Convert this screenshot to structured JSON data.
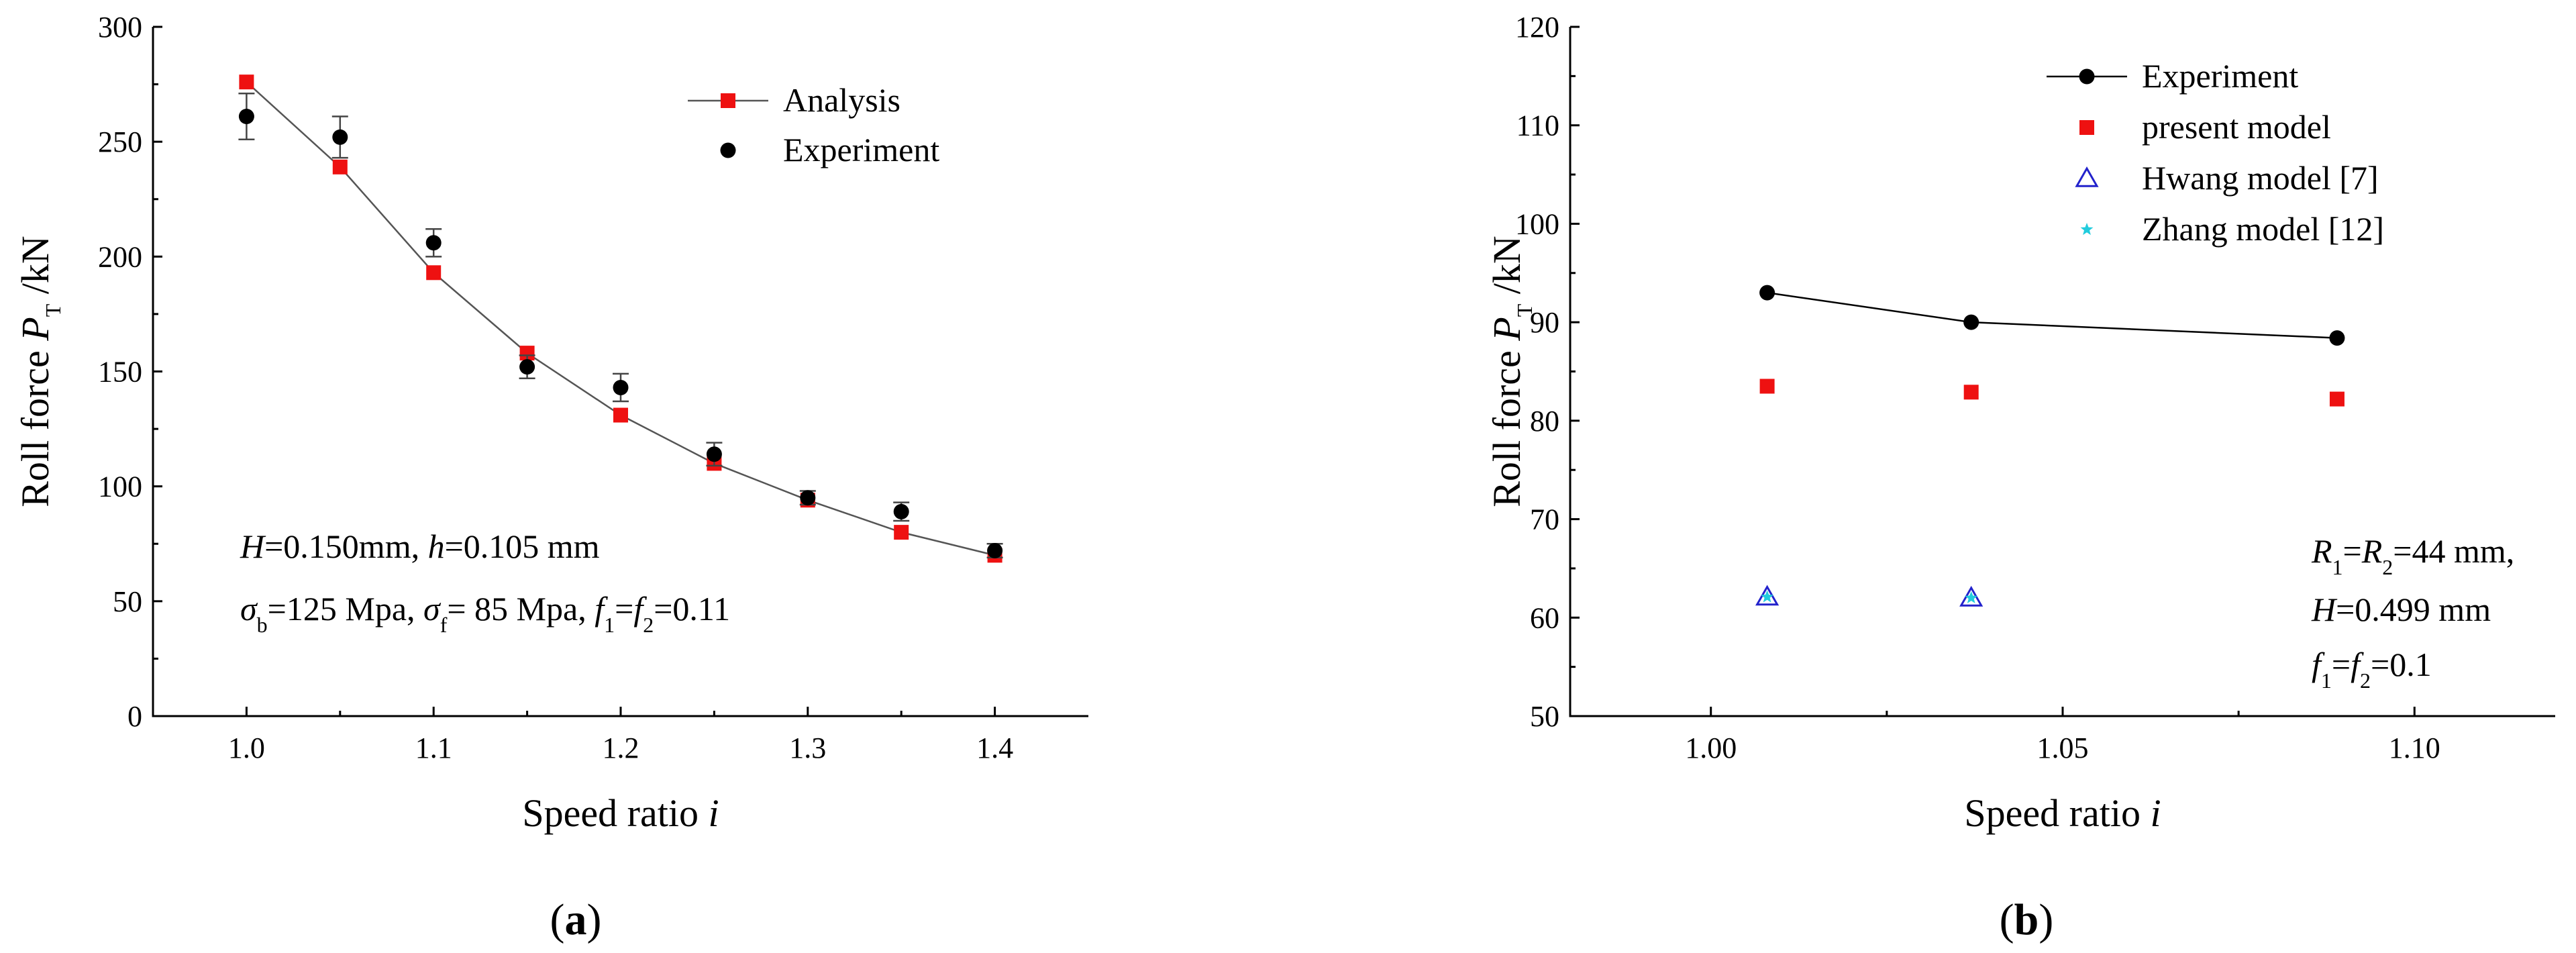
{
  "chart_data": [
    {
      "type": "line",
      "panel_label": "a",
      "xlabel": "Speed ratio ",
      "xlabel_var": "i",
      "ylabel_prefix": "Roll force ",
      "ylabel_var": "P",
      "ylabel_sub": "T",
      "ylabel_suffix": " /kN",
      "xlim": [
        0.95,
        1.45
      ],
      "ylim": [
        0,
        300
      ],
      "xticks": [
        1.0,
        1.1,
        1.2,
        1.3,
        1.4
      ],
      "xtick_labels": [
        "1.0",
        "1.1",
        "1.2",
        "1.3",
        "1.4"
      ],
      "yticks": [
        0,
        50,
        100,
        150,
        200,
        250,
        300
      ],
      "ytick_labels": [
        "0",
        "50",
        "100",
        "150",
        "200",
        "250",
        "300"
      ],
      "legend_position": "top-right",
      "series": [
        {
          "name": "Analysis",
          "marker": "square",
          "color": "#ee1111",
          "line_color": "#555555",
          "x": [
            1.0,
            1.05,
            1.1,
            1.15,
            1.2,
            1.25,
            1.3,
            1.35,
            1.4
          ],
          "y": [
            276,
            239,
            193,
            158,
            131,
            110,
            94,
            80,
            70
          ]
        },
        {
          "name": "Experiment",
          "marker": "circle",
          "color": "#000000",
          "x": [
            1.0,
            1.05,
            1.1,
            1.15,
            1.2,
            1.25,
            1.3,
            1.35,
            1.4
          ],
          "y": [
            261,
            252,
            206,
            152,
            143,
            114,
            95,
            89,
            72
          ],
          "error": [
            10,
            9,
            6,
            5,
            6,
            5,
            3,
            4,
            3
          ]
        }
      ],
      "annotations": [
        {
          "parts": [
            [
              "i",
              "H"
            ],
            [
              "t",
              "=0.150mm, "
            ],
            [
              "i",
              "h"
            ],
            [
              "t",
              "=0.105 mm"
            ]
          ]
        },
        {
          "parts": [
            [
              "i",
              "σ"
            ],
            [
              "s",
              "b"
            ],
            [
              "t",
              "=125 Mpa, "
            ],
            [
              "i",
              "σ"
            ],
            [
              "s",
              "f"
            ],
            [
              "t",
              "= 85 Mpa, "
            ],
            [
              "i",
              "f"
            ],
            [
              "s",
              "1"
            ],
            [
              "t",
              "="
            ],
            [
              "i",
              "f"
            ],
            [
              "s",
              "2"
            ],
            [
              "t",
              "=0.11"
            ]
          ]
        }
      ]
    },
    {
      "type": "scatter",
      "panel_label": "b",
      "xlabel": "Speed ratio ",
      "xlabel_var": "i",
      "ylabel_prefix": "Roll force ",
      "ylabel_var": "P",
      "ylabel_sub": "T",
      "ylabel_suffix": " /kN",
      "xlim": [
        0.98,
        1.12
      ],
      "ylim": [
        50,
        120
      ],
      "xticks": [
        1.0,
        1.05,
        1.1
      ],
      "xtick_labels": [
        "1.00",
        "1.05",
        "1.10"
      ],
      "yticks": [
        50,
        60,
        70,
        80,
        90,
        100,
        110,
        120
      ],
      "ytick_labels": [
        "50",
        "60",
        "70",
        "80",
        "90",
        "100",
        "110",
        "120"
      ],
      "legend_position": "top-right",
      "series": [
        {
          "name": "Experiment",
          "marker": "circle",
          "color": "#000000",
          "connected": true,
          "x": [
            1.008,
            1.037,
            1.089
          ],
          "y": [
            93.0,
            90.0,
            88.4
          ]
        },
        {
          "name": "present model",
          "marker": "square",
          "color": "#ee1111",
          "x": [
            1.008,
            1.037,
            1.089
          ],
          "y": [
            83.5,
            82.9,
            82.2
          ]
        },
        {
          "name": "Hwang model [7]",
          "marker": "triangle",
          "color": "#2222cc",
          "x": [
            1.008,
            1.037
          ],
          "y": [
            62.1,
            62.0
          ]
        },
        {
          "name": "Zhang model [12]",
          "marker": "star",
          "color": "#22ccdd",
          "x": [
            1.008,
            1.037
          ],
          "y": [
            62.1,
            62.0
          ]
        }
      ],
      "annotations": [
        {
          "parts": [
            [
              "i",
              "R"
            ],
            [
              "s",
              "1"
            ],
            [
              "t",
              "="
            ],
            [
              "i",
              "R"
            ],
            [
              "s",
              "2"
            ],
            [
              "t",
              "=44 mm,"
            ]
          ]
        },
        {
          "parts": [
            [
              "i",
              "H"
            ],
            [
              "t",
              "=0.499 mm"
            ]
          ]
        },
        {
          "parts": [
            [
              "i",
              "f"
            ],
            [
              "s",
              "1"
            ],
            [
              "t",
              "="
            ],
            [
              "i",
              "f"
            ],
            [
              "s",
              "2"
            ],
            [
              "t",
              "=0.1"
            ]
          ]
        }
      ]
    }
  ]
}
